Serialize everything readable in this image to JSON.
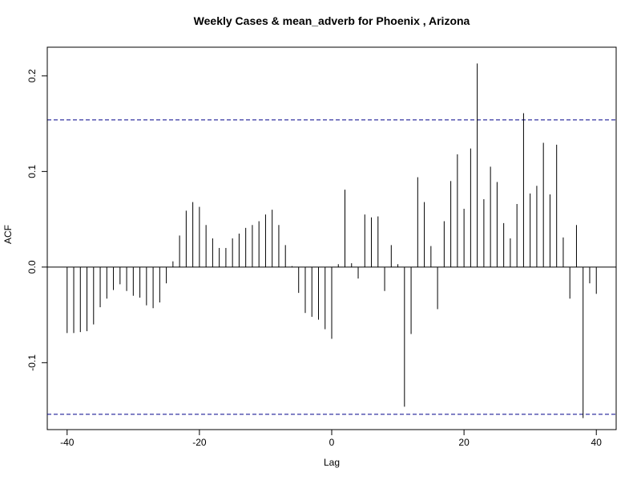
{
  "chart_data": {
    "type": "bar",
    "title": "Weekly Cases & mean_adverb for Phoenix , Arizona",
    "xlabel": "Lag",
    "ylabel": "ACF",
    "xlim": [
      -43,
      43
    ],
    "ylim": [
      -0.17,
      0.23
    ],
    "x_ticks": [
      -40,
      -20,
      0,
      20,
      40
    ],
    "y_ticks": [
      -0.1,
      0.0,
      0.1,
      0.2
    ],
    "y_tick_labels": [
      "-0.1",
      "0.0",
      "0.1",
      "0.2"
    ],
    "ci_upper": 0.154,
    "ci_lower": -0.154,
    "ci_color": "#00008B",
    "lags": [
      -40,
      -39,
      -38,
      -37,
      -36,
      -35,
      -34,
      -33,
      -32,
      -31,
      -30,
      -29,
      -28,
      -27,
      -26,
      -25,
      -24,
      -23,
      -22,
      -21,
      -20,
      -19,
      -18,
      -17,
      -16,
      -15,
      -14,
      -13,
      -12,
      -11,
      -10,
      -9,
      -8,
      -7,
      -6,
      -5,
      -4,
      -3,
      -2,
      -1,
      0,
      1,
      2,
      3,
      4,
      5,
      6,
      7,
      8,
      9,
      10,
      11,
      12,
      13,
      14,
      15,
      16,
      17,
      18,
      19,
      20,
      21,
      22,
      23,
      24,
      25,
      26,
      27,
      28,
      29,
      30,
      31,
      32,
      33,
      34,
      35,
      36,
      37,
      38,
      39,
      40
    ],
    "values": [
      -0.069,
      -0.069,
      -0.068,
      -0.067,
      -0.06,
      -0.042,
      -0.033,
      -0.024,
      -0.018,
      -0.025,
      -0.03,
      -0.032,
      -0.04,
      -0.043,
      -0.037,
      -0.017,
      0.006,
      0.033,
      0.059,
      0.068,
      0.063,
      0.044,
      0.03,
      0.02,
      0.02,
      0.03,
      0.035,
      0.041,
      0.044,
      0.048,
      0.055,
      0.06,
      0.044,
      0.023,
      0.001,
      -0.027,
      -0.048,
      -0.052,
      -0.055,
      -0.065,
      -0.075,
      0.003,
      0.081,
      0.004,
      -0.012,
      0.055,
      0.052,
      0.053,
      -0.025,
      0.023,
      0.003,
      -0.146,
      -0.07,
      0.094,
      0.068,
      0.022,
      -0.044,
      0.048,
      0.09,
      0.118,
      0.061,
      0.124,
      0.213,
      0.071,
      0.105,
      0.089,
      0.046,
      0.03,
      0.066,
      0.161,
      0.077,
      0.085,
      0.13,
      0.076,
      0.128,
      0.031,
      -0.033,
      0.044,
      -0.158,
      -0.017,
      -0.028
    ]
  }
}
